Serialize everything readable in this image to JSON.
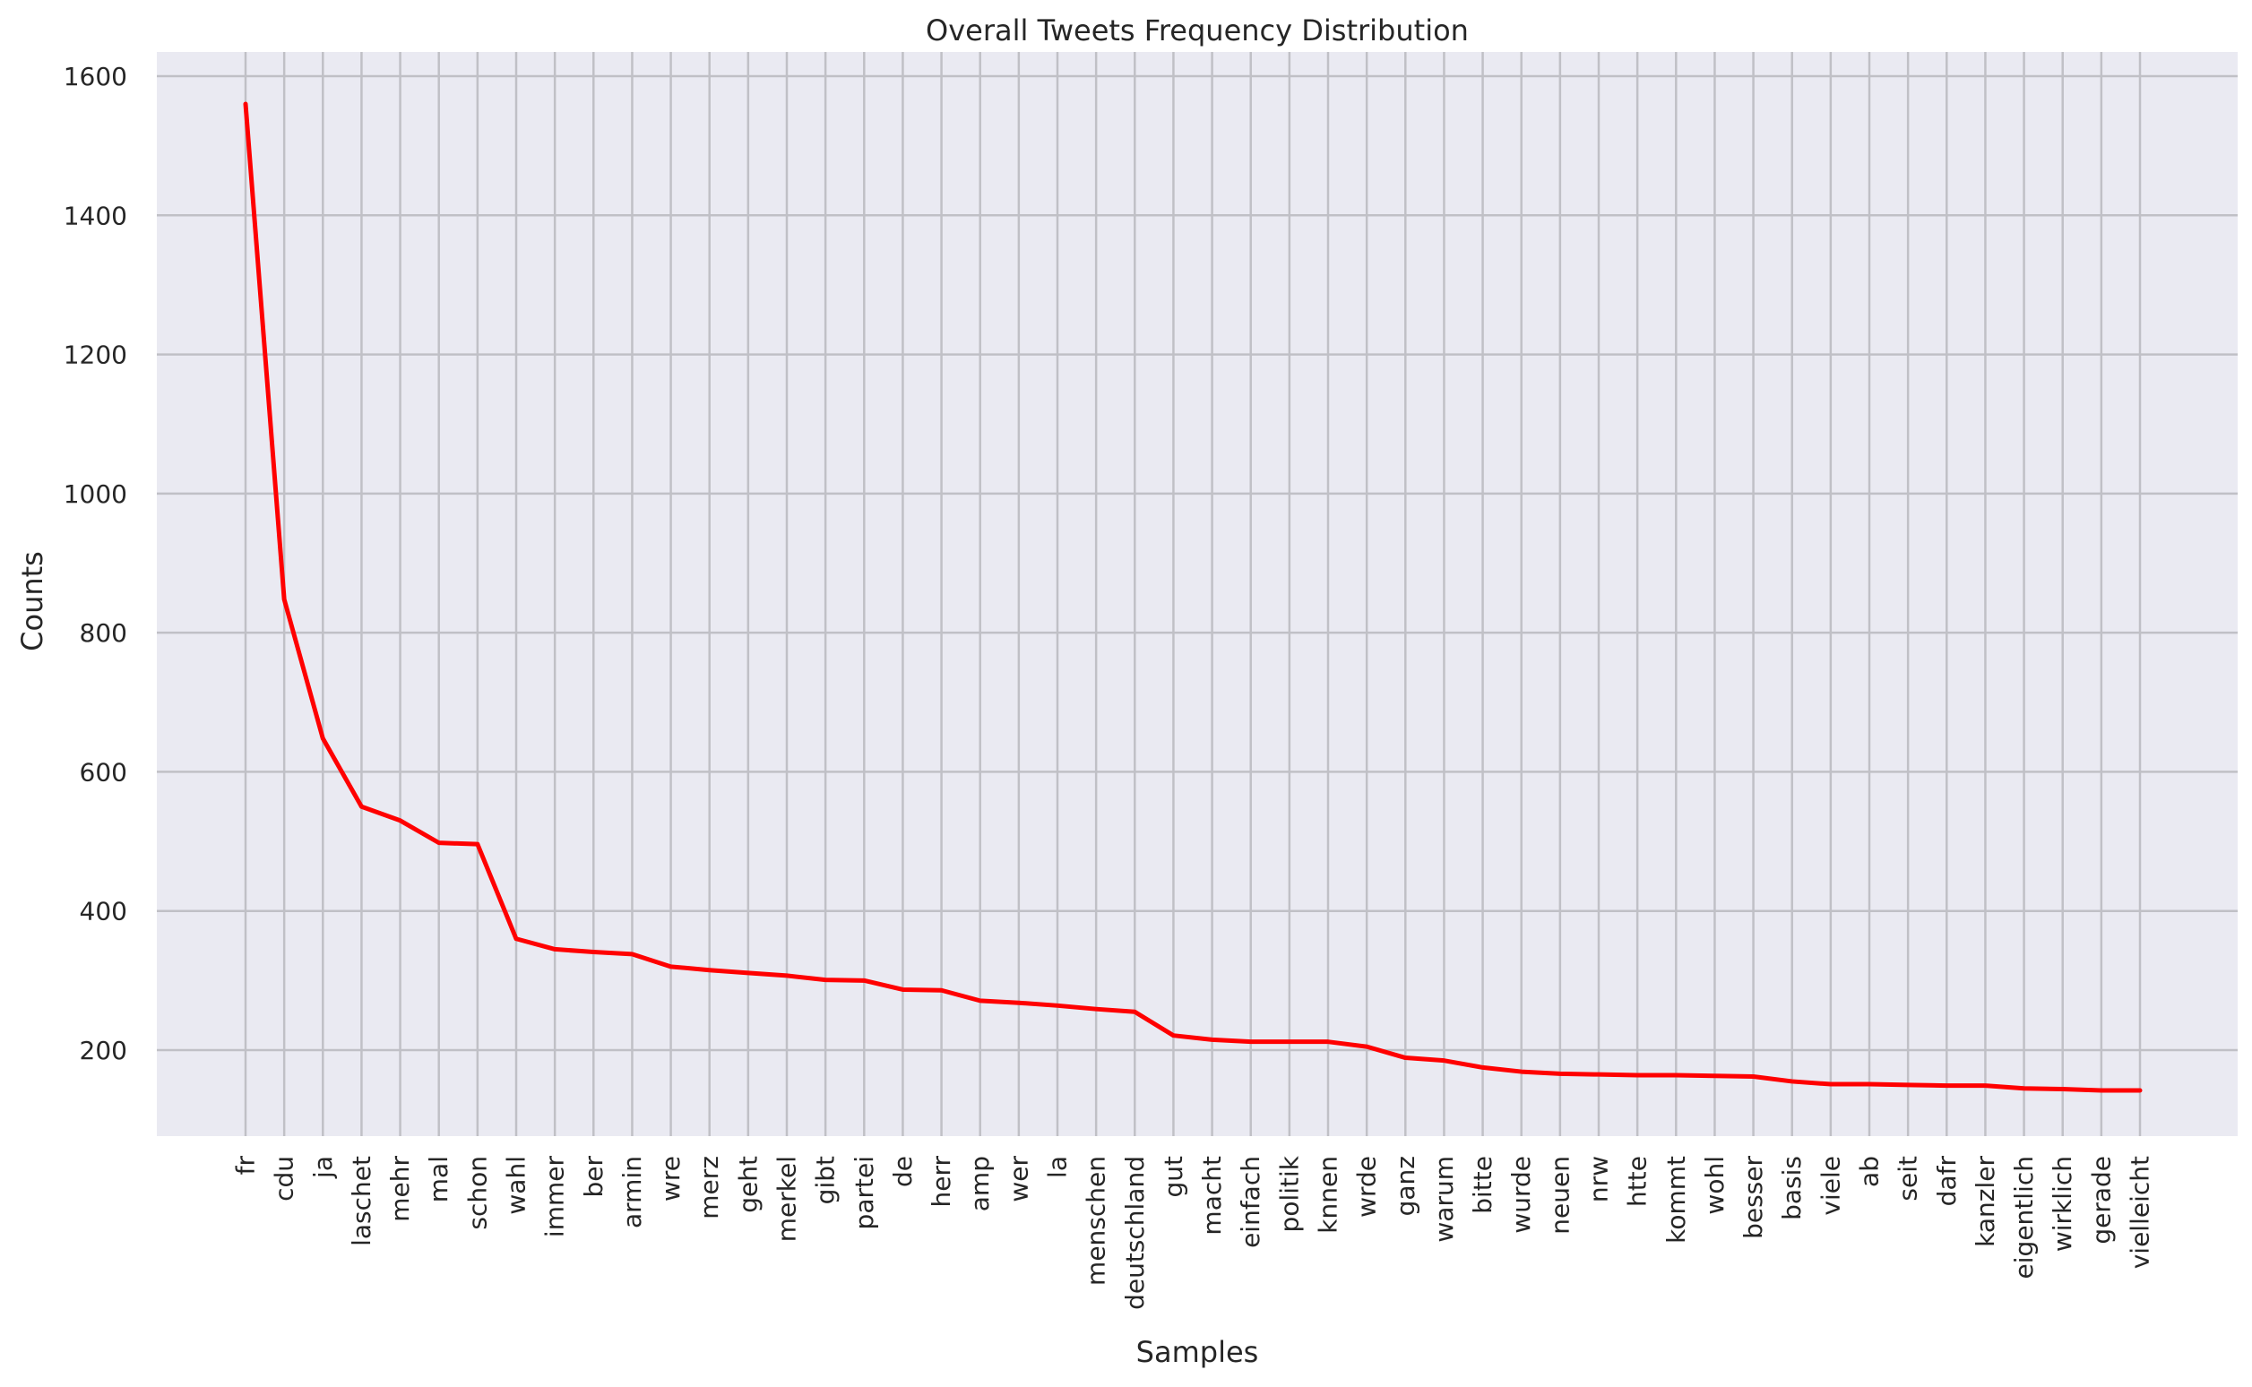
{
  "chart_data": {
    "type": "line",
    "title": "Overall Tweets Frequency Distribution",
    "xlabel": "Samples",
    "ylabel": "Counts",
    "ylim": [
      70,
      1630
    ],
    "yticks": [
      200,
      400,
      600,
      800,
      1000,
      1200,
      1400,
      1600
    ],
    "grid": true,
    "background_color": "#eaeaf2",
    "grid_color": "#c0c0c6",
    "line_color": "#ff0000",
    "categories": [
      "fr",
      "cdu",
      "ja",
      "laschet",
      "mehr",
      "mal",
      "schon",
      "wahl",
      "immer",
      "ber",
      "armin",
      "wre",
      "merz",
      "geht",
      "merkel",
      "gibt",
      "partei",
      "de",
      "herr",
      "amp",
      "wer",
      "la",
      "menschen",
      "deutschland",
      "gut",
      "macht",
      "einfach",
      "politik",
      "knnen",
      "wrde",
      "ganz",
      "warum",
      "bitte",
      "wurde",
      "neuen",
      "nrw",
      "htte",
      "kommt",
      "wohl",
      "besser",
      "basis",
      "viele",
      "ab",
      "seit",
      "dafr",
      "kanzler",
      "eigentlich",
      "wirklich",
      "gerade",
      "vielleicht"
    ],
    "series": [
      {
        "values": [
          1560,
          848,
          648,
          550,
          530,
          498,
          496,
          360,
          345,
          341,
          338,
          320,
          315,
          311,
          307,
          301,
          300,
          287,
          286,
          271,
          268,
          264,
          259,
          255,
          221,
          215,
          212,
          212,
          212,
          205,
          189,
          185,
          175,
          169,
          166,
          165,
          164,
          164,
          163,
          162,
          155,
          151,
          151,
          150,
          149,
          149,
          145,
          144,
          142,
          142
        ]
      }
    ]
  }
}
